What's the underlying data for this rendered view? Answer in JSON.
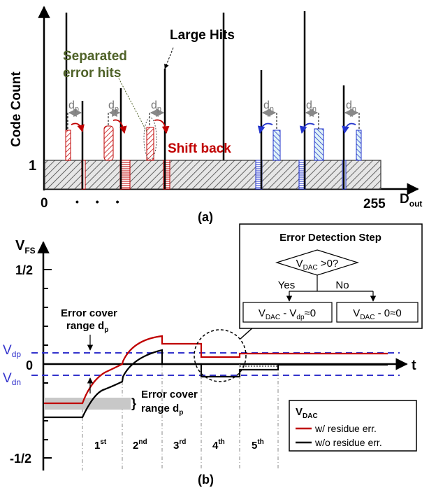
{
  "colors": {
    "red": "#c00000",
    "blue": "#2233cc",
    "green": "#4f6228",
    "dash_blue": "#3333cc",
    "gray": "#c8c8c8"
  },
  "panel_a": {
    "ylabel": "Code Count",
    "y_tick_1": "1",
    "x_zero": "0",
    "x_end": "255",
    "xlabel_main": "D",
    "xlabel_sub": "out",
    "large_hits": "Large Hits",
    "separated_l1": "Separated",
    "separated_l2": "error hits",
    "shift_back": "Shift back",
    "dp_main": "d",
    "dp_sub": "p",
    "dn_main": "d",
    "dn_sub": "n",
    "ellipsis": "• • •",
    "caption": "(a)"
  },
  "panel_b": {
    "ylabel_main": "V",
    "ylabel_sub": "FS",
    "tick_top": "1/2",
    "tick_zero": "0",
    "tick_bottom": "-1/2",
    "vdp_main": "V",
    "vdp_sub": "dp",
    "vdn_main": "V",
    "vdn_sub": "dn",
    "t_label": "t",
    "cover_top_l1": "Error cover",
    "cover_top_l2_main": "range d",
    "cover_top_l2_sub": "p",
    "cover_bot_l1": "Error cover",
    "cover_bot_l2_main": "range d",
    "cover_bot_l2_sub": "p",
    "steps": [
      {
        "num": "1",
        "sup": "st"
      },
      {
        "num": "2",
        "sup": "nd"
      },
      {
        "num": "3",
        "sup": "rd"
      },
      {
        "num": "4",
        "sup": "th"
      },
      {
        "num": "5",
        "sup": "th"
      }
    ],
    "box_title": "Error Detection Step",
    "decision_main": "V",
    "decision_sub": "DAC",
    "decision_rest": " >0?",
    "yes": "Yes",
    "no": "No",
    "out_yes_main": "V",
    "out_yes_sub1": "DAC",
    "out_yes_mid": " - V",
    "out_yes_sub2": "dp",
    "out_yes_rest": "≈0",
    "out_no_main": "V",
    "out_no_sub": "DAC",
    "out_no_rest": " - 0≈0",
    "legend_title_main": "V",
    "legend_title_sub": "DAC",
    "legend_red": "w/ residue err.",
    "legend_black": "w/o residue err.",
    "caption": "(b)"
  }
}
